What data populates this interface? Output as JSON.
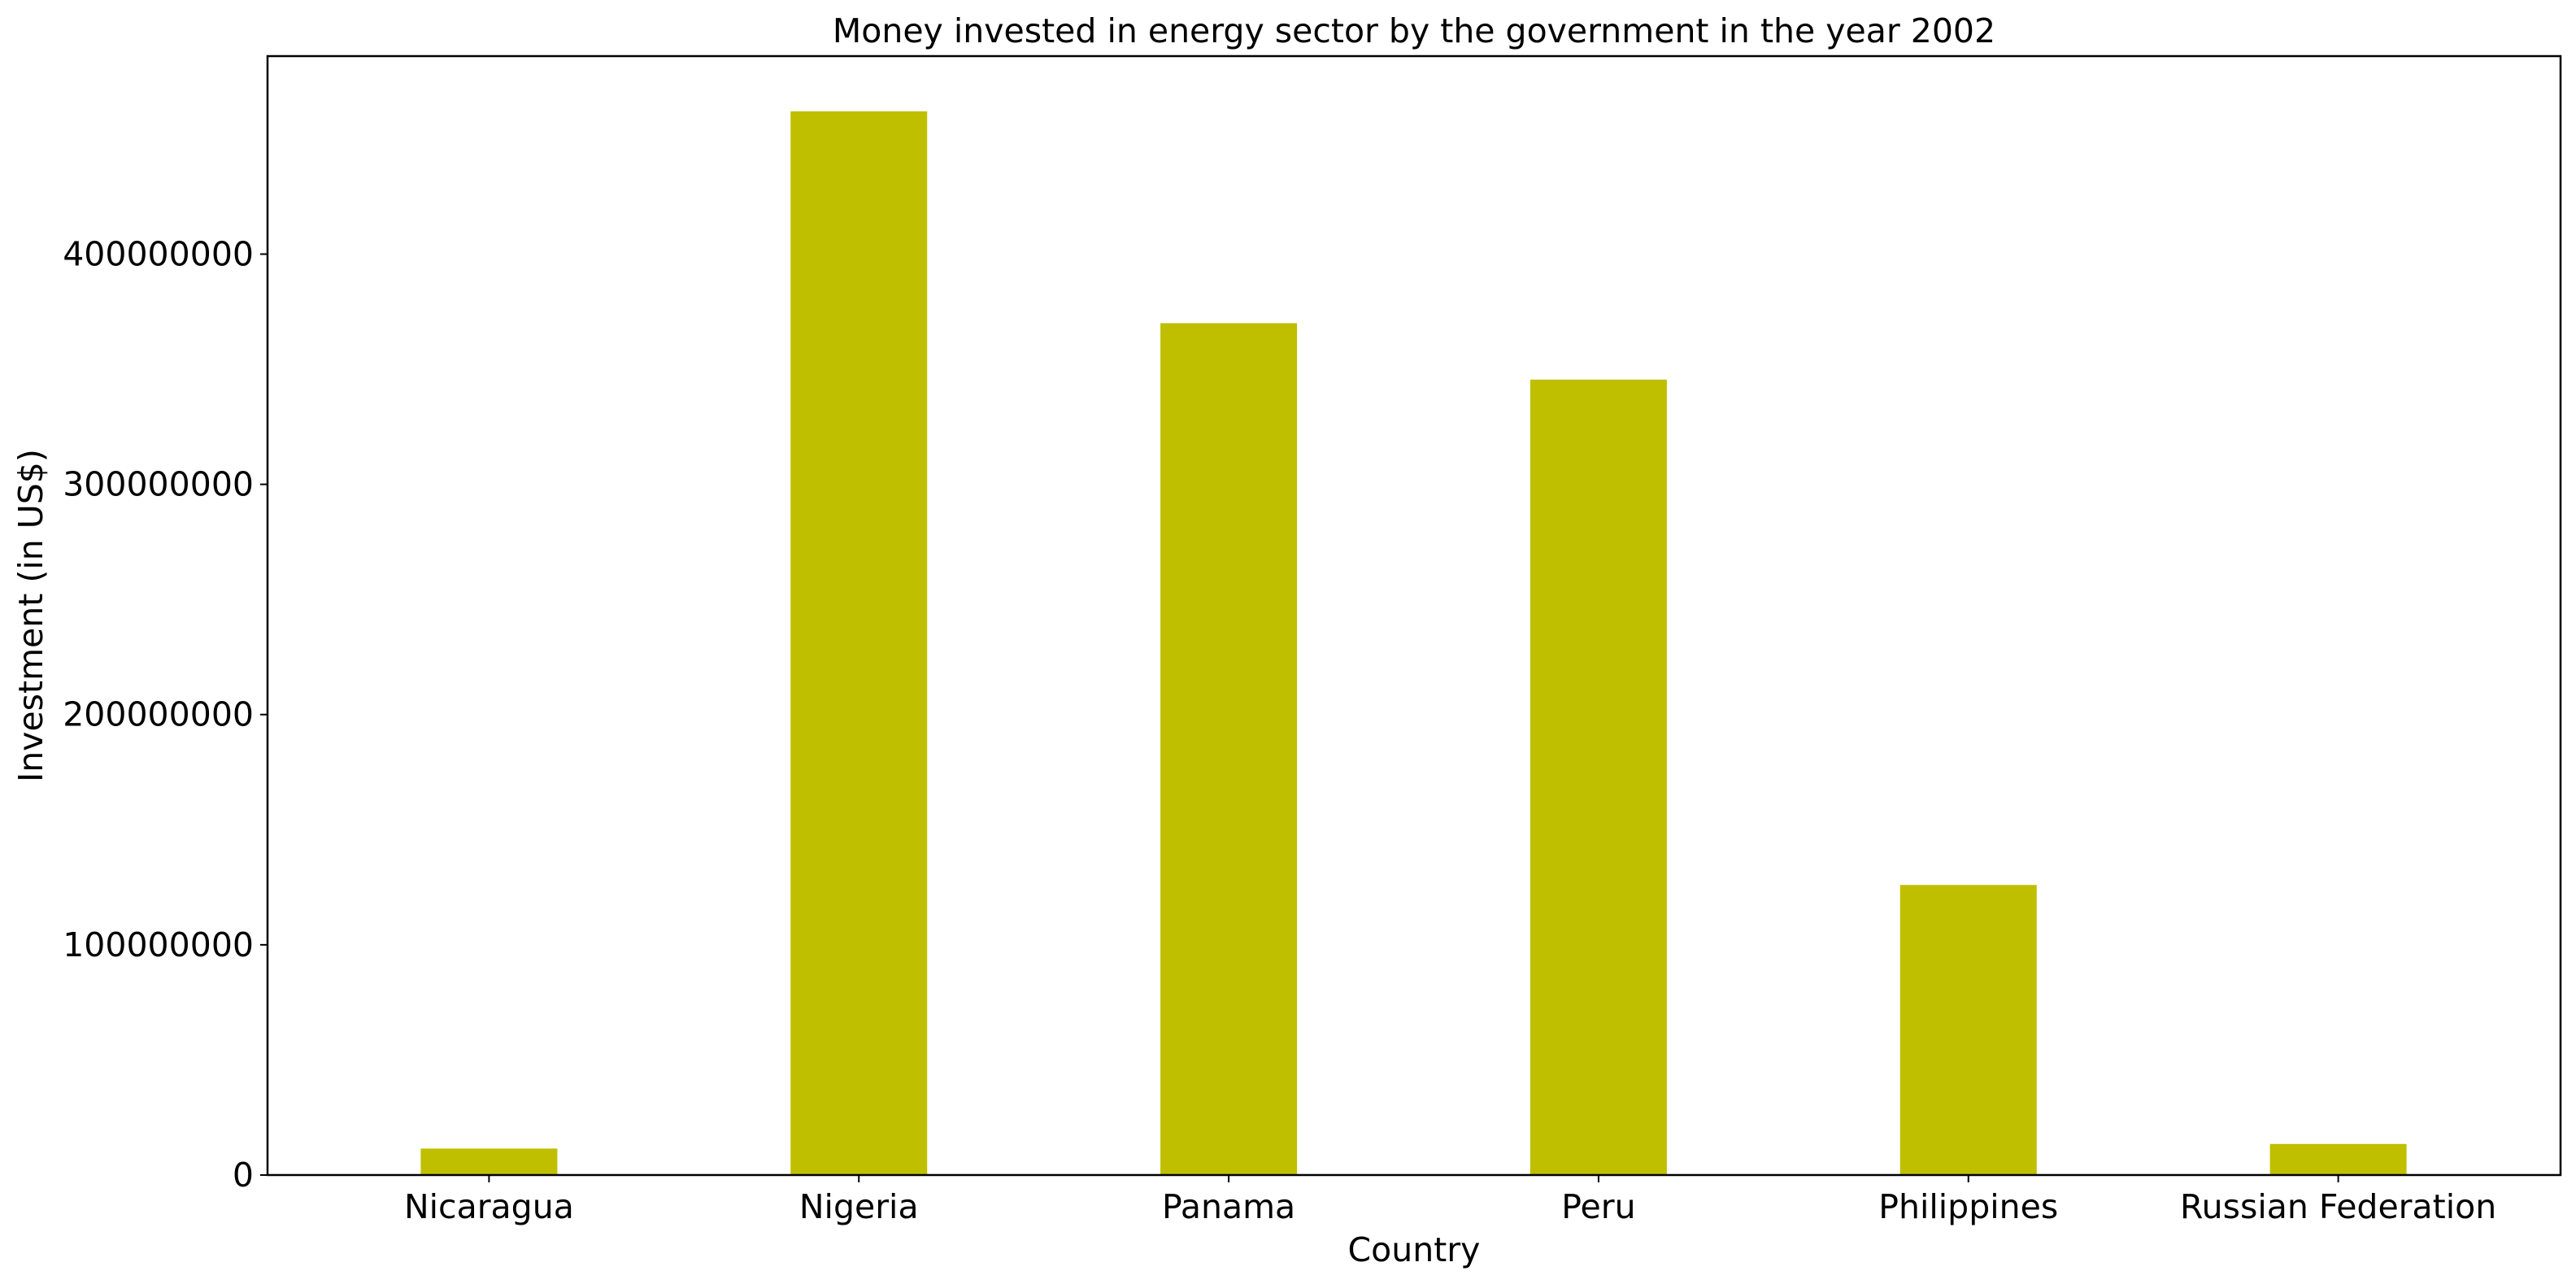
{
  "chart_data": {
    "type": "bar",
    "title": "Money invested in energy sector by the government in the year 2002",
    "xlabel": "Country",
    "ylabel": "Investment (in US$)",
    "categories": [
      "Nicaragua",
      "Nigeria",
      "Panama",
      "Peru",
      "Philippines",
      "Russian Federation"
    ],
    "values": [
      11500000,
      462000000,
      370000000,
      345500000,
      126000000,
      13500000
    ],
    "ylim": [
      0,
      486000000
    ],
    "yticks": [
      0,
      100000000,
      200000000,
      300000000,
      400000000
    ],
    "ytick_labels": [
      "0",
      "100000000",
      "200000000",
      "300000000",
      "400000000"
    ],
    "bar_color": "#bfbf00",
    "grid": false,
    "legend": false
  }
}
